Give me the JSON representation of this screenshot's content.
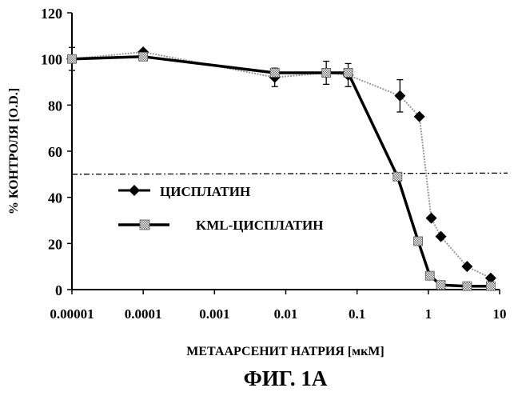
{
  "figure_label": "ФИГ. 1А",
  "chart_data": {
    "type": "line",
    "title": "",
    "xlabel": "МЕТААРСЕНИТ НАТРИЯ [мкМ]",
    "ylabel": "% КОНТРОЛЯ [O.D.]",
    "xscale": "log",
    "xlim": [
      1e-05,
      10
    ],
    "ylim": [
      0,
      120
    ],
    "x_ticks": [
      "0.00001",
      "0.0001",
      "0.001",
      "0.01",
      "0.1",
      "1",
      "10"
    ],
    "y_ticks": [
      "0",
      "20",
      "40",
      "60",
      "80",
      "100",
      "120"
    ],
    "reference_line": {
      "y": 50,
      "style": "dash-dot"
    },
    "legend_position": "center-left",
    "series": [
      {
        "name": "ЦИСПЛАТИН",
        "marker": "diamond",
        "color": "#000000",
        "line_color": "#999999",
        "line_style": "dotted-thin",
        "x": [
          1e-05,
          0.0001,
          0.007,
          0.037,
          0.075,
          0.4,
          0.75,
          1.1,
          1.5,
          3.5,
          7.5
        ],
        "y": [
          100,
          103,
          92,
          94,
          93,
          84,
          75,
          31,
          23,
          10,
          5
        ]
      },
      {
        "name": "KML-ЦИСПЛАТИН",
        "marker": "square-hatched",
        "color": "#999999",
        "line_color": "#000000",
        "line_style": "solid-thick",
        "x": [
          1e-05,
          0.0001,
          0.007,
          0.037,
          0.075,
          0.37,
          0.72,
          1.05,
          1.5,
          3.5,
          7.5
        ],
        "y": [
          100,
          101,
          94,
          94,
          94,
          49,
          21,
          6,
          2,
          1.5,
          1.5
        ]
      }
    ],
    "error_bars": [
      {
        "x": 1e-05,
        "y": 100,
        "err": 5
      },
      {
        "x": 0.0001,
        "y": 102,
        "err": 2
      },
      {
        "x": 0.007,
        "y": 92,
        "err": 4
      },
      {
        "x": 0.037,
        "y": 94,
        "err": 5
      },
      {
        "x": 0.075,
        "y": 93,
        "err": 5
      },
      {
        "x": 0.4,
        "y": 84,
        "err": 7
      }
    ]
  }
}
